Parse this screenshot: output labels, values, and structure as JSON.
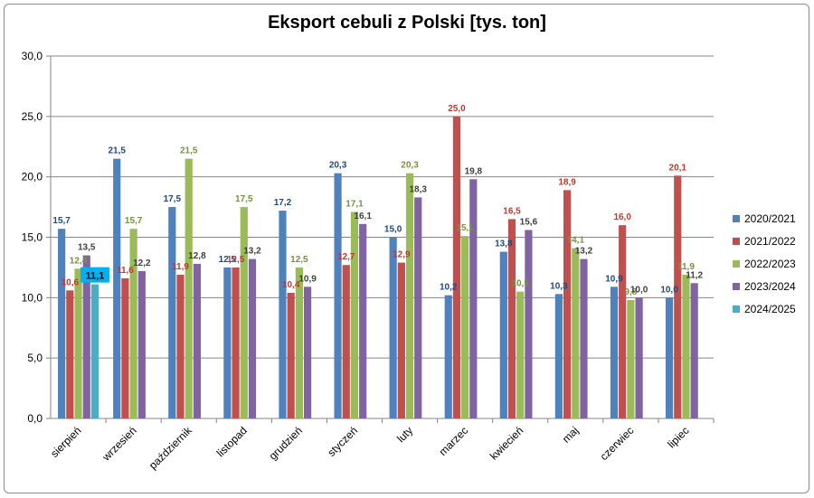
{
  "chart_data": {
    "type": "bar",
    "title": "Eksport cebuli z Polski [tys. ton]",
    "categories": [
      "sierpień",
      "wrzesień",
      "październik",
      "listopad",
      "grudzień",
      "styczeń",
      "luty",
      "marzec",
      "kwiecień",
      "maj",
      "czerwiec",
      "lipiec"
    ],
    "ylim": [
      0,
      30
    ],
    "yticks": [
      "0,0",
      "5,0",
      "10,0",
      "15,0",
      "20,0",
      "25,0",
      "30,0"
    ],
    "grid": true,
    "legend": "right",
    "series": [
      {
        "name": "2020/2021",
        "color": "#4f81bd",
        "labelColor": "#1f497d",
        "values": [
          15.7,
          21.5,
          17.5,
          12.5,
          17.2,
          20.3,
          15.0,
          10.2,
          13.8,
          10.3,
          10.9,
          10.0
        ],
        "labels": [
          "15,7",
          "21,5",
          "17,5",
          "12,5",
          "17,2",
          "20,3",
          "15,0",
          "10,2",
          "13,8",
          "10,3",
          "10,9",
          "10,0"
        ]
      },
      {
        "name": "2021/2022",
        "color": "#c0504d",
        "labelColor": "#c0392b",
        "values": [
          10.6,
          11.6,
          11.9,
          12.5,
          10.4,
          12.7,
          12.9,
          25.0,
          16.5,
          18.9,
          16.0,
          20.1
        ],
        "labels": [
          "10,6",
          "11,6",
          "11,9",
          "12,5",
          "10,4",
          "12,7",
          "12,9",
          "25,0",
          "16,5",
          "18,9",
          "16,0",
          "20,1"
        ]
      },
      {
        "name": "2022/2023",
        "color": "#9bbb59",
        "labelColor": "#76923c",
        "values": [
          12.4,
          15.7,
          21.5,
          17.5,
          12.5,
          17.1,
          20.3,
          15.1,
          10.5,
          14.1,
          9.8,
          11.9
        ],
        "labels": [
          "12,4",
          "15,7",
          "21,5",
          "17,5",
          "12,5",
          "17,1",
          "20,3",
          "15,1",
          "10,5",
          "14,1",
          "9,8",
          "11,9"
        ]
      },
      {
        "name": "2023/2024",
        "color": "#8064a2",
        "labelColor": "#3f3f3f",
        "values": [
          13.5,
          12.2,
          12.8,
          13.2,
          10.9,
          16.1,
          18.3,
          19.8,
          15.6,
          13.2,
          10.0,
          11.2
        ],
        "labels": [
          "13,5",
          "12,2",
          "12,8",
          "13,2",
          "10,9",
          "16,1",
          "18,3",
          "19,8",
          "15,6",
          "13,2",
          "10,0",
          "11,2"
        ]
      },
      {
        "name": "2024/2025",
        "color": "#4bacc6",
        "labelColor": "#000000",
        "values": [
          11.1,
          null,
          null,
          null,
          null,
          null,
          null,
          null,
          null,
          null,
          null,
          null
        ],
        "labels": [
          "11,1",
          "",
          "",
          "",
          "",
          "",
          "",
          "",
          "",
          "",
          "",
          ""
        ]
      }
    ]
  }
}
